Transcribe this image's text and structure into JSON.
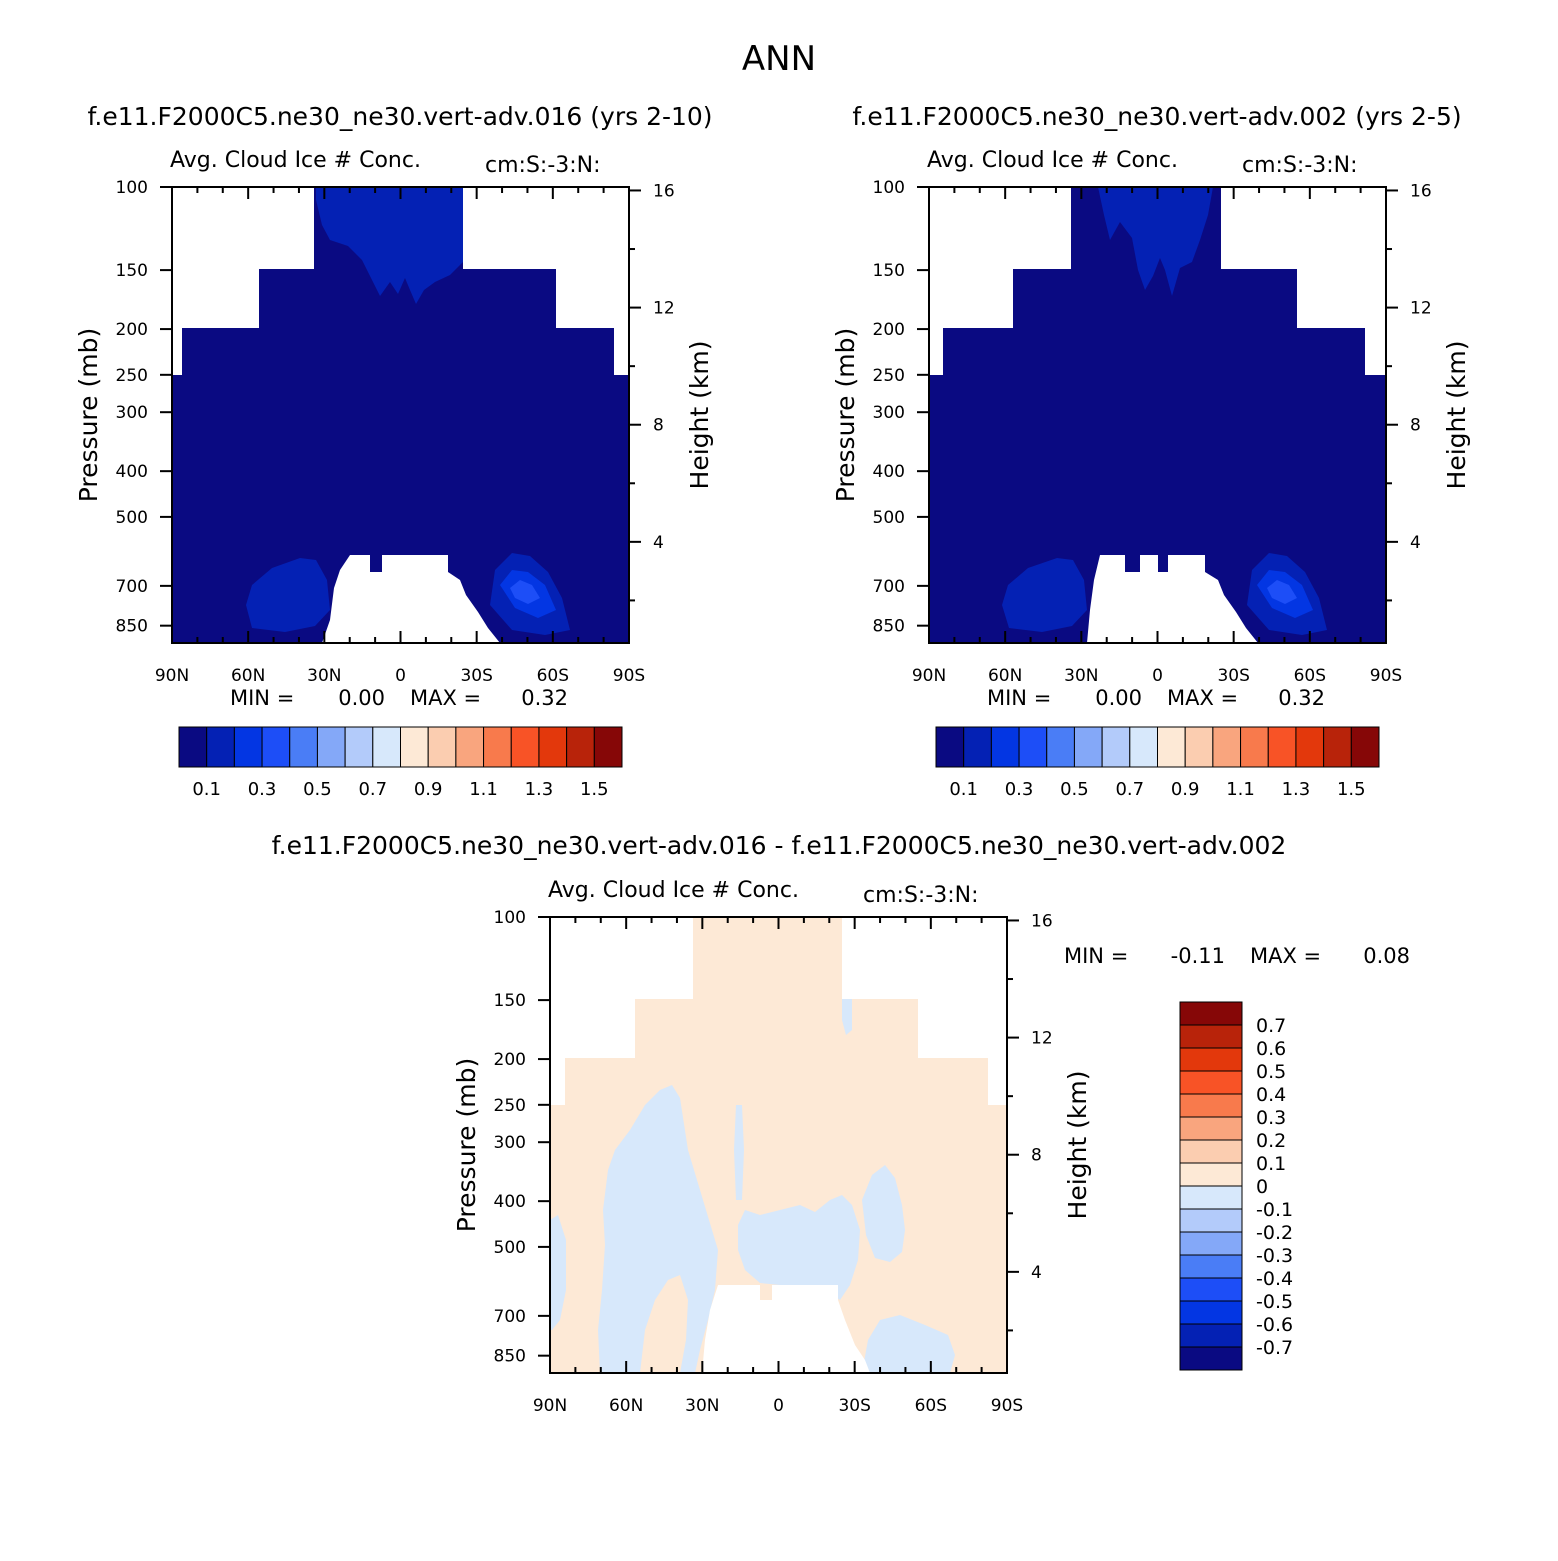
{
  "page_title": "ANN",
  "colors": {
    "top_palette": [
      "#0a0a82",
      "#0421b4",
      "#0336e3",
      "#1d4ef7",
      "#4a7df6",
      "#84a8f8",
      "#b3cbfa",
      "#d7e8fb",
      "#fde9d6",
      "#fbcdb0",
      "#f9a57e",
      "#f87a4c",
      "#f85326",
      "#e3380c",
      "#b8230a",
      "#860707"
    ],
    "diff_palette": [
      "#0a0a82",
      "#0421b4",
      "#0336e3",
      "#1d4ef7",
      "#4a7df6",
      "#84a8f8",
      "#b3cbfa",
      "#d7e8fb",
      "#fde9d6",
      "#fbcdb0",
      "#f9a57e",
      "#f87a4c",
      "#f85326",
      "#e3380c",
      "#b8230a",
      "#860707"
    ]
  },
  "panels": {
    "p1": {
      "case_title": "f.e11.F2000C5.ne30_ne30.vert-adv.016 (yrs 2-10)",
      "subtitle": "Avg. Cloud Ice # Conc.",
      "units": "cm:S:-3:N:",
      "ylabel_left": "Pressure (mb)",
      "ylabel_right": "Height (km)",
      "min_label": "MIN =",
      "min_value": "0.00",
      "max_label": "MAX =",
      "max_value": "0.32"
    },
    "p2": {
      "case_title": "f.e11.F2000C5.ne30_ne30.vert-adv.002 (yrs 2-5)",
      "subtitle": "Avg. Cloud Ice # Conc.",
      "units": "cm:S:-3:N:",
      "ylabel_left": "Pressure (mb)",
      "ylabel_right": "Height (km)",
      "min_label": "MIN =",
      "min_value": "0.00",
      "max_label": "MAX =",
      "max_value": "0.32"
    },
    "p3": {
      "case_title": "f.e11.F2000C5.ne30_ne30.vert-adv.016 - f.e11.F2000C5.ne30_ne30.vert-adv.002",
      "subtitle": "Avg. Cloud Ice # Conc.",
      "units": "cm:S:-3:N:",
      "ylabel_left": "Pressure (mb)",
      "ylabel_right": "Height (km)",
      "min_label": "MIN =",
      "min_value": "-0.11",
      "max_label": "MAX =",
      "max_value": "0.08"
    }
  },
  "chart_data": [
    {
      "type": "heatmap",
      "title": "Avg. Cloud Ice # Conc.",
      "case": "f.e11.F2000C5.ne30_ne30.vert-adv.016 (yrs 2-10)",
      "xlabel": "",
      "ylabel": "Pressure (mb)",
      "y2label": "Height (km)",
      "x_ticks": [
        "90N",
        "60N",
        "30N",
        "0",
        "30S",
        "60S",
        "90S"
      ],
      "y_ticks": [
        "100",
        "150",
        "200",
        "250",
        "300",
        "400",
        "500",
        "700",
        "850"
      ],
      "y2_ticks": [
        "16",
        "12",
        "8",
        "4"
      ],
      "levels": [
        "0.1",
        "0.3",
        "0.5",
        "0.7",
        "0.9",
        "1.1",
        "1.3",
        "1.5"
      ],
      "min": 0.0,
      "max": 0.32
    },
    {
      "type": "heatmap",
      "title": "Avg. Cloud Ice # Conc.",
      "case": "f.e11.F2000C5.ne30_ne30.vert-adv.002 (yrs 2-5)",
      "xlabel": "",
      "ylabel": "Pressure (mb)",
      "y2label": "Height (km)",
      "x_ticks": [
        "90N",
        "60N",
        "30N",
        "0",
        "30S",
        "60S",
        "90S"
      ],
      "y_ticks": [
        "100",
        "150",
        "200",
        "250",
        "300",
        "400",
        "500",
        "700",
        "850"
      ],
      "y2_ticks": [
        "16",
        "12",
        "8",
        "4"
      ],
      "levels": [
        "0.1",
        "0.3",
        "0.5",
        "0.7",
        "0.9",
        "1.1",
        "1.3",
        "1.5"
      ],
      "min": 0.0,
      "max": 0.32
    },
    {
      "type": "heatmap",
      "title": "Avg. Cloud Ice # Conc.",
      "case": "f.e11.F2000C5.ne30_ne30.vert-adv.016 - f.e11.F2000C5.ne30_ne30.vert-adv.002",
      "xlabel": "",
      "ylabel": "Pressure (mb)",
      "y2label": "Height (km)",
      "x_ticks": [
        "90N",
        "60N",
        "30N",
        "0",
        "30S",
        "60S",
        "90S"
      ],
      "y_ticks": [
        "100",
        "150",
        "200",
        "250",
        "300",
        "400",
        "500",
        "700",
        "850"
      ],
      "y2_ticks": [
        "16",
        "12",
        "8",
        "4"
      ],
      "levels": [
        "0.7",
        "0.6",
        "0.5",
        "0.4",
        "0.3",
        "0.2",
        "0.1",
        "0",
        "-0.1",
        "-0.2",
        "-0.3",
        "-0.4",
        "-0.5",
        "-0.6",
        "-0.7"
      ],
      "min": -0.11,
      "max": 0.08
    }
  ]
}
